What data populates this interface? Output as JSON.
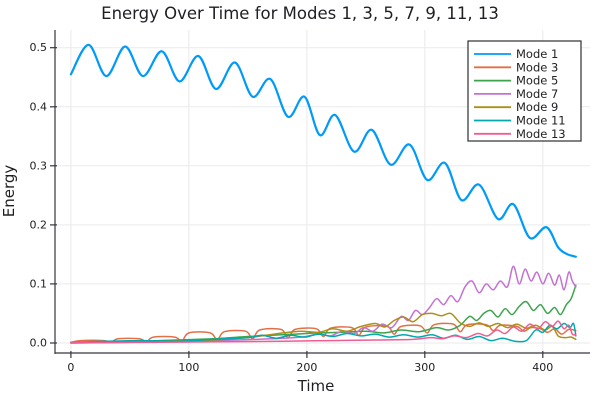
{
  "chart_data": {
    "type": "line",
    "title": "Energy Over Time for Modes 1, 3, 5, 7, 9, 11, 13",
    "xlabel": "Time",
    "ylabel": "Energy",
    "xlim": [
      -13.5,
      440
    ],
    "ylim": [
      -0.017,
      0.53
    ],
    "xticks": [
      0,
      100,
      200,
      300,
      400
    ],
    "xticklabels": [
      "0",
      "100",
      "200",
      "300",
      "400"
    ],
    "yticks": [
      0.0,
      0.1,
      0.2,
      0.3,
      0.4,
      0.5
    ],
    "yticklabels": [
      "0.0",
      "0.1",
      "0.2",
      "0.3",
      "0.4",
      "0.5"
    ],
    "grid": true,
    "background": "#FFFFFF",
    "text_color": "#1F1F23",
    "axis_color": "#36363D",
    "grid_color": "#EAEAEA",
    "legend": {
      "position": "top-right",
      "border_color": "#2E2E32",
      "background": "#FFFFFF"
    },
    "series": [
      {
        "name": "Mode 1",
        "color": "#009AF9",
        "line_width": 2.2,
        "smooth": true,
        "points": [
          [
            0,
            0.455
          ],
          [
            15,
            0.505
          ],
          [
            30,
            0.452
          ],
          [
            46,
            0.502
          ],
          [
            61,
            0.452
          ],
          [
            77,
            0.494
          ],
          [
            92,
            0.443
          ],
          [
            108,
            0.486
          ],
          [
            123,
            0.43
          ],
          [
            139,
            0.475
          ],
          [
            154,
            0.417
          ],
          [
            169,
            0.447
          ],
          [
            184,
            0.383
          ],
          [
            198,
            0.417
          ],
          [
            211,
            0.352
          ],
          [
            224,
            0.386
          ],
          [
            240,
            0.324
          ],
          [
            255,
            0.361
          ],
          [
            271,
            0.302
          ],
          [
            287,
            0.336
          ],
          [
            302,
            0.276
          ],
          [
            317,
            0.305
          ],
          [
            331,
            0.242
          ],
          [
            346,
            0.268
          ],
          [
            362,
            0.21
          ],
          [
            375,
            0.235
          ],
          [
            389,
            0.178
          ],
          [
            403,
            0.196
          ],
          [
            413,
            0.162
          ],
          [
            420,
            0.151
          ],
          [
            428,
            0.146
          ]
        ]
      },
      {
        "name": "Mode 3",
        "color": "#E36F47",
        "line_width": 1.5,
        "smooth": true,
        "points": [
          [
            0,
            0.001
          ],
          [
            8,
            0.004
          ],
          [
            28,
            0.004
          ],
          [
            34,
            0.001
          ],
          [
            40,
            0.007
          ],
          [
            58,
            0.007
          ],
          [
            64,
            0.002
          ],
          [
            70,
            0.01
          ],
          [
            88,
            0.01
          ],
          [
            94,
            0.003
          ],
          [
            100,
            0.017
          ],
          [
            118,
            0.017
          ],
          [
            124,
            0.005
          ],
          [
            130,
            0.019
          ],
          [
            148,
            0.02
          ],
          [
            154,
            0.007
          ],
          [
            160,
            0.022
          ],
          [
            178,
            0.023
          ],
          [
            184,
            0.009
          ],
          [
            190,
            0.023
          ],
          [
            208,
            0.024
          ],
          [
            214,
            0.011
          ],
          [
            220,
            0.025
          ],
          [
            238,
            0.026
          ],
          [
            244,
            0.013
          ],
          [
            250,
            0.027
          ],
          [
            268,
            0.028
          ],
          [
            274,
            0.015
          ],
          [
            280,
            0.028
          ],
          [
            296,
            0.029
          ],
          [
            302,
            0.017
          ],
          [
            308,
            0.031
          ],
          [
            324,
            0.032
          ],
          [
            330,
            0.019
          ],
          [
            336,
            0.031
          ],
          [
            352,
            0.031
          ],
          [
            358,
            0.021
          ],
          [
            364,
            0.03
          ],
          [
            378,
            0.028
          ],
          [
            384,
            0.02
          ],
          [
            390,
            0.026
          ],
          [
            398,
            0.024
          ],
          [
            404,
            0.018
          ],
          [
            410,
            0.024
          ],
          [
            416,
            0.015
          ],
          [
            422,
            0.023
          ],
          [
            428,
            0.021
          ]
        ]
      },
      {
        "name": "Mode 5",
        "color": "#3DA44D",
        "line_width": 1.5,
        "smooth": true,
        "points": [
          [
            0,
            0.001
          ],
          [
            30,
            0.002
          ],
          [
            60,
            0.003
          ],
          [
            90,
            0.005
          ],
          [
            120,
            0.007
          ],
          [
            150,
            0.011
          ],
          [
            170,
            0.013
          ],
          [
            190,
            0.015
          ],
          [
            210,
            0.017
          ],
          [
            230,
            0.018
          ],
          [
            250,
            0.02
          ],
          [
            265,
            0.017
          ],
          [
            280,
            0.022
          ],
          [
            295,
            0.019
          ],
          [
            310,
            0.026
          ],
          [
            320,
            0.022
          ],
          [
            330,
            0.03
          ],
          [
            338,
            0.045
          ],
          [
            344,
            0.038
          ],
          [
            350,
            0.05
          ],
          [
            356,
            0.055
          ],
          [
            362,
            0.044
          ],
          [
            368,
            0.058
          ],
          [
            374,
            0.048
          ],
          [
            380,
            0.062
          ],
          [
            386,
            0.07
          ],
          [
            392,
            0.055
          ],
          [
            398,
            0.065
          ],
          [
            404,
            0.05
          ],
          [
            410,
            0.06
          ],
          [
            415,
            0.048
          ],
          [
            420,
            0.065
          ],
          [
            424,
            0.075
          ],
          [
            428,
            0.098
          ]
        ]
      },
      {
        "name": "Mode 7",
        "color": "#C371D2",
        "line_width": 1.5,
        "smooth": true,
        "points": [
          [
            0,
            0.0
          ],
          [
            50,
            0.001
          ],
          [
            100,
            0.003
          ],
          [
            140,
            0.005
          ],
          [
            170,
            0.007
          ],
          [
            195,
            0.01
          ],
          [
            210,
            0.015
          ],
          [
            220,
            0.012
          ],
          [
            230,
            0.02
          ],
          [
            240,
            0.016
          ],
          [
            248,
            0.026
          ],
          [
            256,
            0.02
          ],
          [
            264,
            0.032
          ],
          [
            272,
            0.026
          ],
          [
            280,
            0.045
          ],
          [
            286,
            0.038
          ],
          [
            292,
            0.055
          ],
          [
            298,
            0.048
          ],
          [
            304,
            0.06
          ],
          [
            310,
            0.075
          ],
          [
            316,
            0.065
          ],
          [
            322,
            0.08
          ],
          [
            328,
            0.07
          ],
          [
            334,
            0.095
          ],
          [
            340,
            0.105
          ],
          [
            346,
            0.085
          ],
          [
            352,
            0.1
          ],
          [
            358,
            0.09
          ],
          [
            364,
            0.105
          ],
          [
            370,
            0.095
          ],
          [
            375,
            0.13
          ],
          [
            380,
            0.1
          ],
          [
            385,
            0.125
          ],
          [
            390,
            0.105
          ],
          [
            395,
            0.12
          ],
          [
            400,
            0.1
          ],
          [
            405,
            0.118
          ],
          [
            410,
            0.098
          ],
          [
            414,
            0.115
          ],
          [
            418,
            0.09
          ],
          [
            422,
            0.12
          ],
          [
            425,
            0.105
          ],
          [
            428,
            0.095
          ]
        ]
      },
      {
        "name": "Mode 9",
        "color": "#AC8E18",
        "line_width": 1.5,
        "smooth": true,
        "points": [
          [
            0,
            0.0
          ],
          [
            40,
            0.001
          ],
          [
            80,
            0.003
          ],
          [
            120,
            0.005
          ],
          [
            150,
            0.009
          ],
          [
            165,
            0.013
          ],
          [
            180,
            0.017
          ],
          [
            195,
            0.02
          ],
          [
            210,
            0.018
          ],
          [
            222,
            0.024
          ],
          [
            234,
            0.02
          ],
          [
            246,
            0.028
          ],
          [
            258,
            0.033
          ],
          [
            266,
            0.027
          ],
          [
            274,
            0.038
          ],
          [
            282,
            0.044
          ],
          [
            290,
            0.036
          ],
          [
            298,
            0.048
          ],
          [
            306,
            0.05
          ],
          [
            314,
            0.046
          ],
          [
            322,
            0.05
          ],
          [
            330,
            0.034
          ],
          [
            338,
            0.028
          ],
          [
            346,
            0.034
          ],
          [
            354,
            0.028
          ],
          [
            362,
            0.033
          ],
          [
            370,
            0.026
          ],
          [
            378,
            0.032
          ],
          [
            386,
            0.025
          ],
          [
            394,
            0.03
          ],
          [
            402,
            0.022
          ],
          [
            408,
            0.028
          ],
          [
            413,
            0.012
          ],
          [
            419,
            0.009
          ],
          [
            424,
            0.01
          ],
          [
            428,
            0.006
          ]
        ]
      },
      {
        "name": "Mode 11",
        "color": "#00A9AE",
        "line_width": 1.5,
        "smooth": true,
        "points": [
          [
            0,
            0.001
          ],
          [
            30,
            0.003
          ],
          [
            60,
            0.004
          ],
          [
            90,
            0.003
          ],
          [
            120,
            0.006
          ],
          [
            150,
            0.009
          ],
          [
            162,
            0.013
          ],
          [
            174,
            0.008
          ],
          [
            186,
            0.013
          ],
          [
            198,
            0.01
          ],
          [
            210,
            0.015
          ],
          [
            222,
            0.011
          ],
          [
            234,
            0.016
          ],
          [
            246,
            0.012
          ],
          [
            258,
            0.015
          ],
          [
            270,
            0.01
          ],
          [
            282,
            0.014
          ],
          [
            294,
            0.01
          ],
          [
            306,
            0.014
          ],
          [
            316,
            0.008
          ],
          [
            326,
            0.013
          ],
          [
            336,
            0.006
          ],
          [
            346,
            0.011
          ],
          [
            356,
            0.004
          ],
          [
            366,
            0.008
          ],
          [
            376,
            0.003
          ],
          [
            386,
            0.004
          ],
          [
            394,
            0.022
          ],
          [
            400,
            0.018
          ],
          [
            406,
            0.03
          ],
          [
            412,
            0.024
          ],
          [
            418,
            0.033
          ],
          [
            423,
            0.026
          ],
          [
            426,
            0.033
          ],
          [
            428,
            0.012
          ]
        ]
      },
      {
        "name": "Mode 13",
        "color": "#ED5E93",
        "line_width": 1.5,
        "smooth": true,
        "points": [
          [
            0,
            0.001
          ],
          [
            60,
            0.001
          ],
          [
            120,
            0.002
          ],
          [
            180,
            0.003
          ],
          [
            220,
            0.004
          ],
          [
            260,
            0.005
          ],
          [
            290,
            0.006
          ],
          [
            305,
            0.009
          ],
          [
            315,
            0.007
          ],
          [
            325,
            0.012
          ],
          [
            335,
            0.009
          ],
          [
            345,
            0.016
          ],
          [
            353,
            0.012
          ],
          [
            361,
            0.022
          ],
          [
            368,
            0.016
          ],
          [
            375,
            0.027
          ],
          [
            382,
            0.02
          ],
          [
            389,
            0.032
          ],
          [
            396,
            0.024
          ],
          [
            402,
            0.036
          ],
          [
            408,
            0.028
          ],
          [
            413,
            0.037
          ],
          [
            418,
            0.024
          ],
          [
            422,
            0.03
          ],
          [
            425,
            0.015
          ],
          [
            428,
            0.014
          ]
        ]
      }
    ]
  }
}
